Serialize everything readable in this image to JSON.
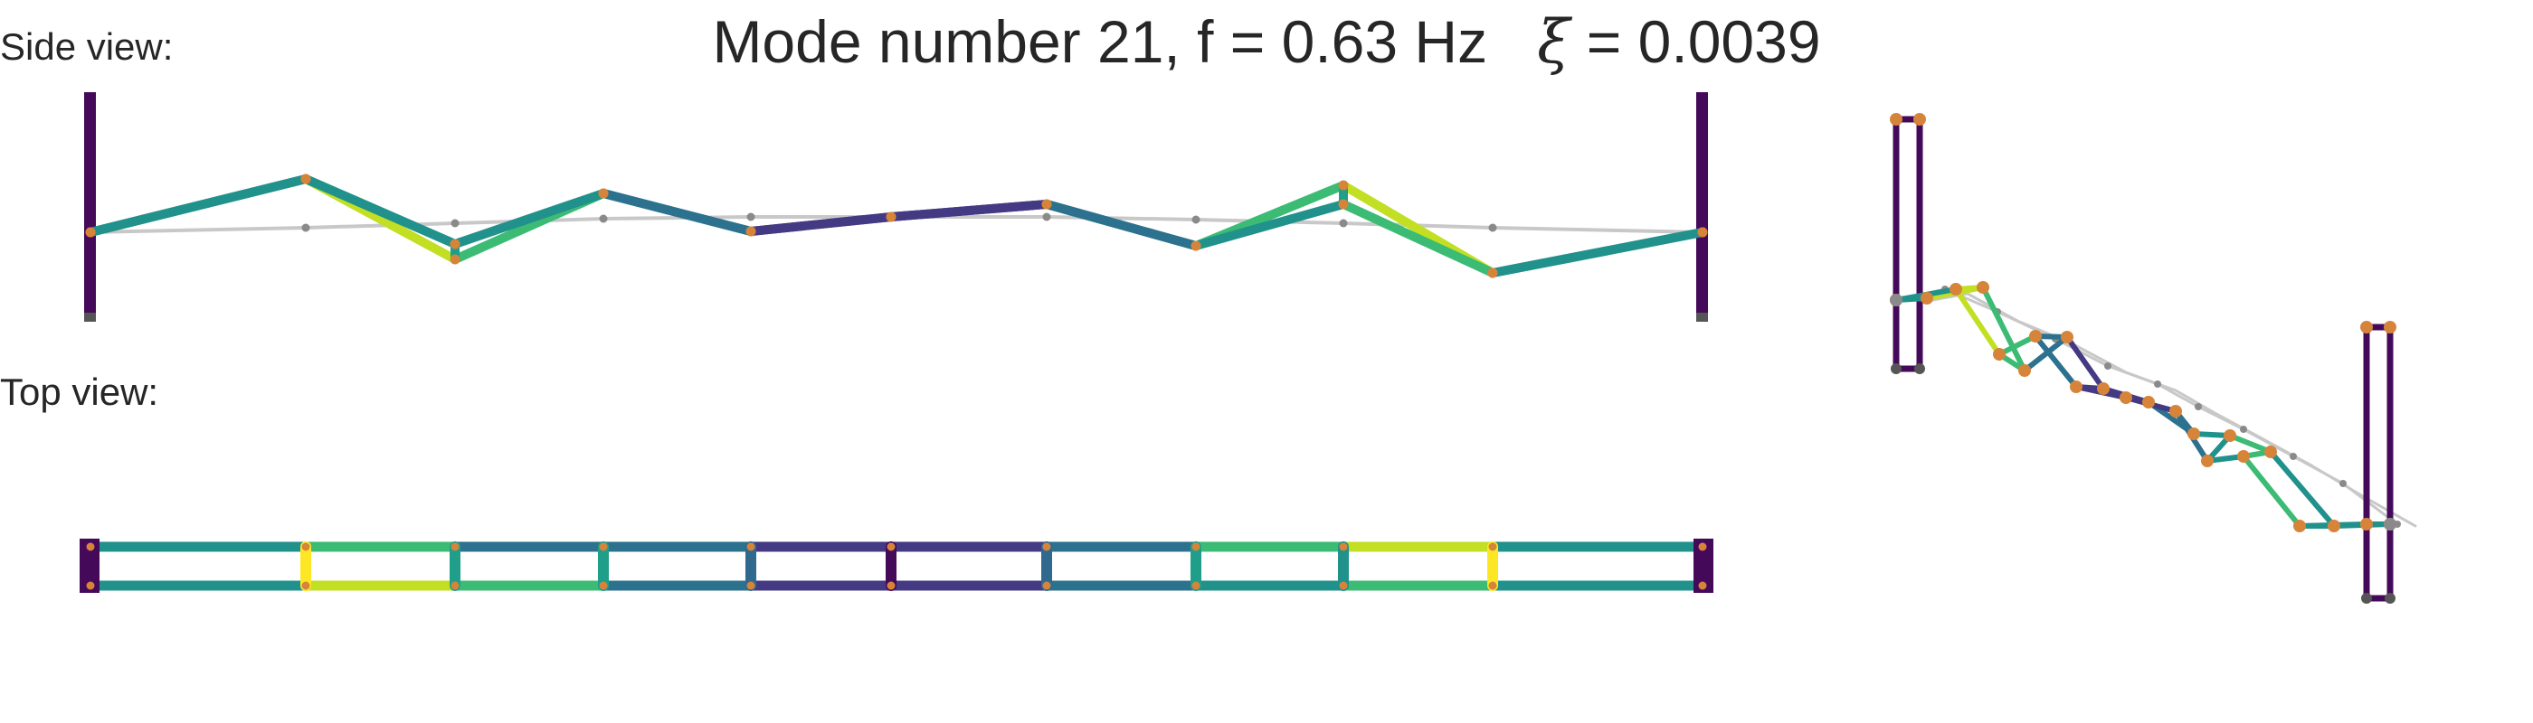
{
  "title": {
    "prefix": "Mode number 21, f = 0.63 Hz",
    "xi_symbol": "ξ",
    "xi_value": " = 0.0039"
  },
  "labels": {
    "side_view": "Side view:",
    "top_view": "Top view:"
  },
  "colors": {
    "undeformed": "#c8c8c8",
    "node_deformed": "#d6843a",
    "node_undeformed": "#8a8a8a",
    "support": "#45095a",
    "support_foot": "#555555"
  }
}
